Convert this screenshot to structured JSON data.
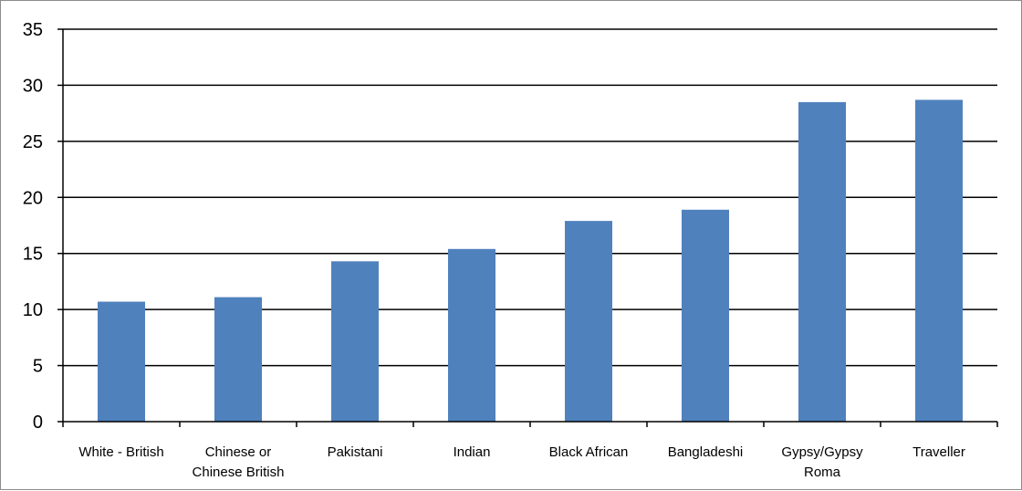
{
  "chart_data": {
    "type": "bar",
    "title": "",
    "xlabel": "",
    "ylabel": "",
    "categories": [
      [
        "White - British"
      ],
      [
        "Chinese or",
        "Chinese British"
      ],
      [
        "Pakistani"
      ],
      [
        "Indian"
      ],
      [
        "Black African"
      ],
      [
        "Bangladeshi"
      ],
      [
        "Gypsy/Gypsy",
        "Roma"
      ],
      [
        "Traveller"
      ]
    ],
    "values": [
      10.7,
      11.1,
      14.3,
      15.4,
      17.9,
      18.9,
      28.5,
      28.7
    ],
    "ylim": [
      0,
      35
    ],
    "yticks": [
      0,
      5,
      10,
      15,
      20,
      25,
      30,
      35
    ],
    "grid": true,
    "bar_color": "#4f81bd",
    "grid_color": "#000000"
  }
}
